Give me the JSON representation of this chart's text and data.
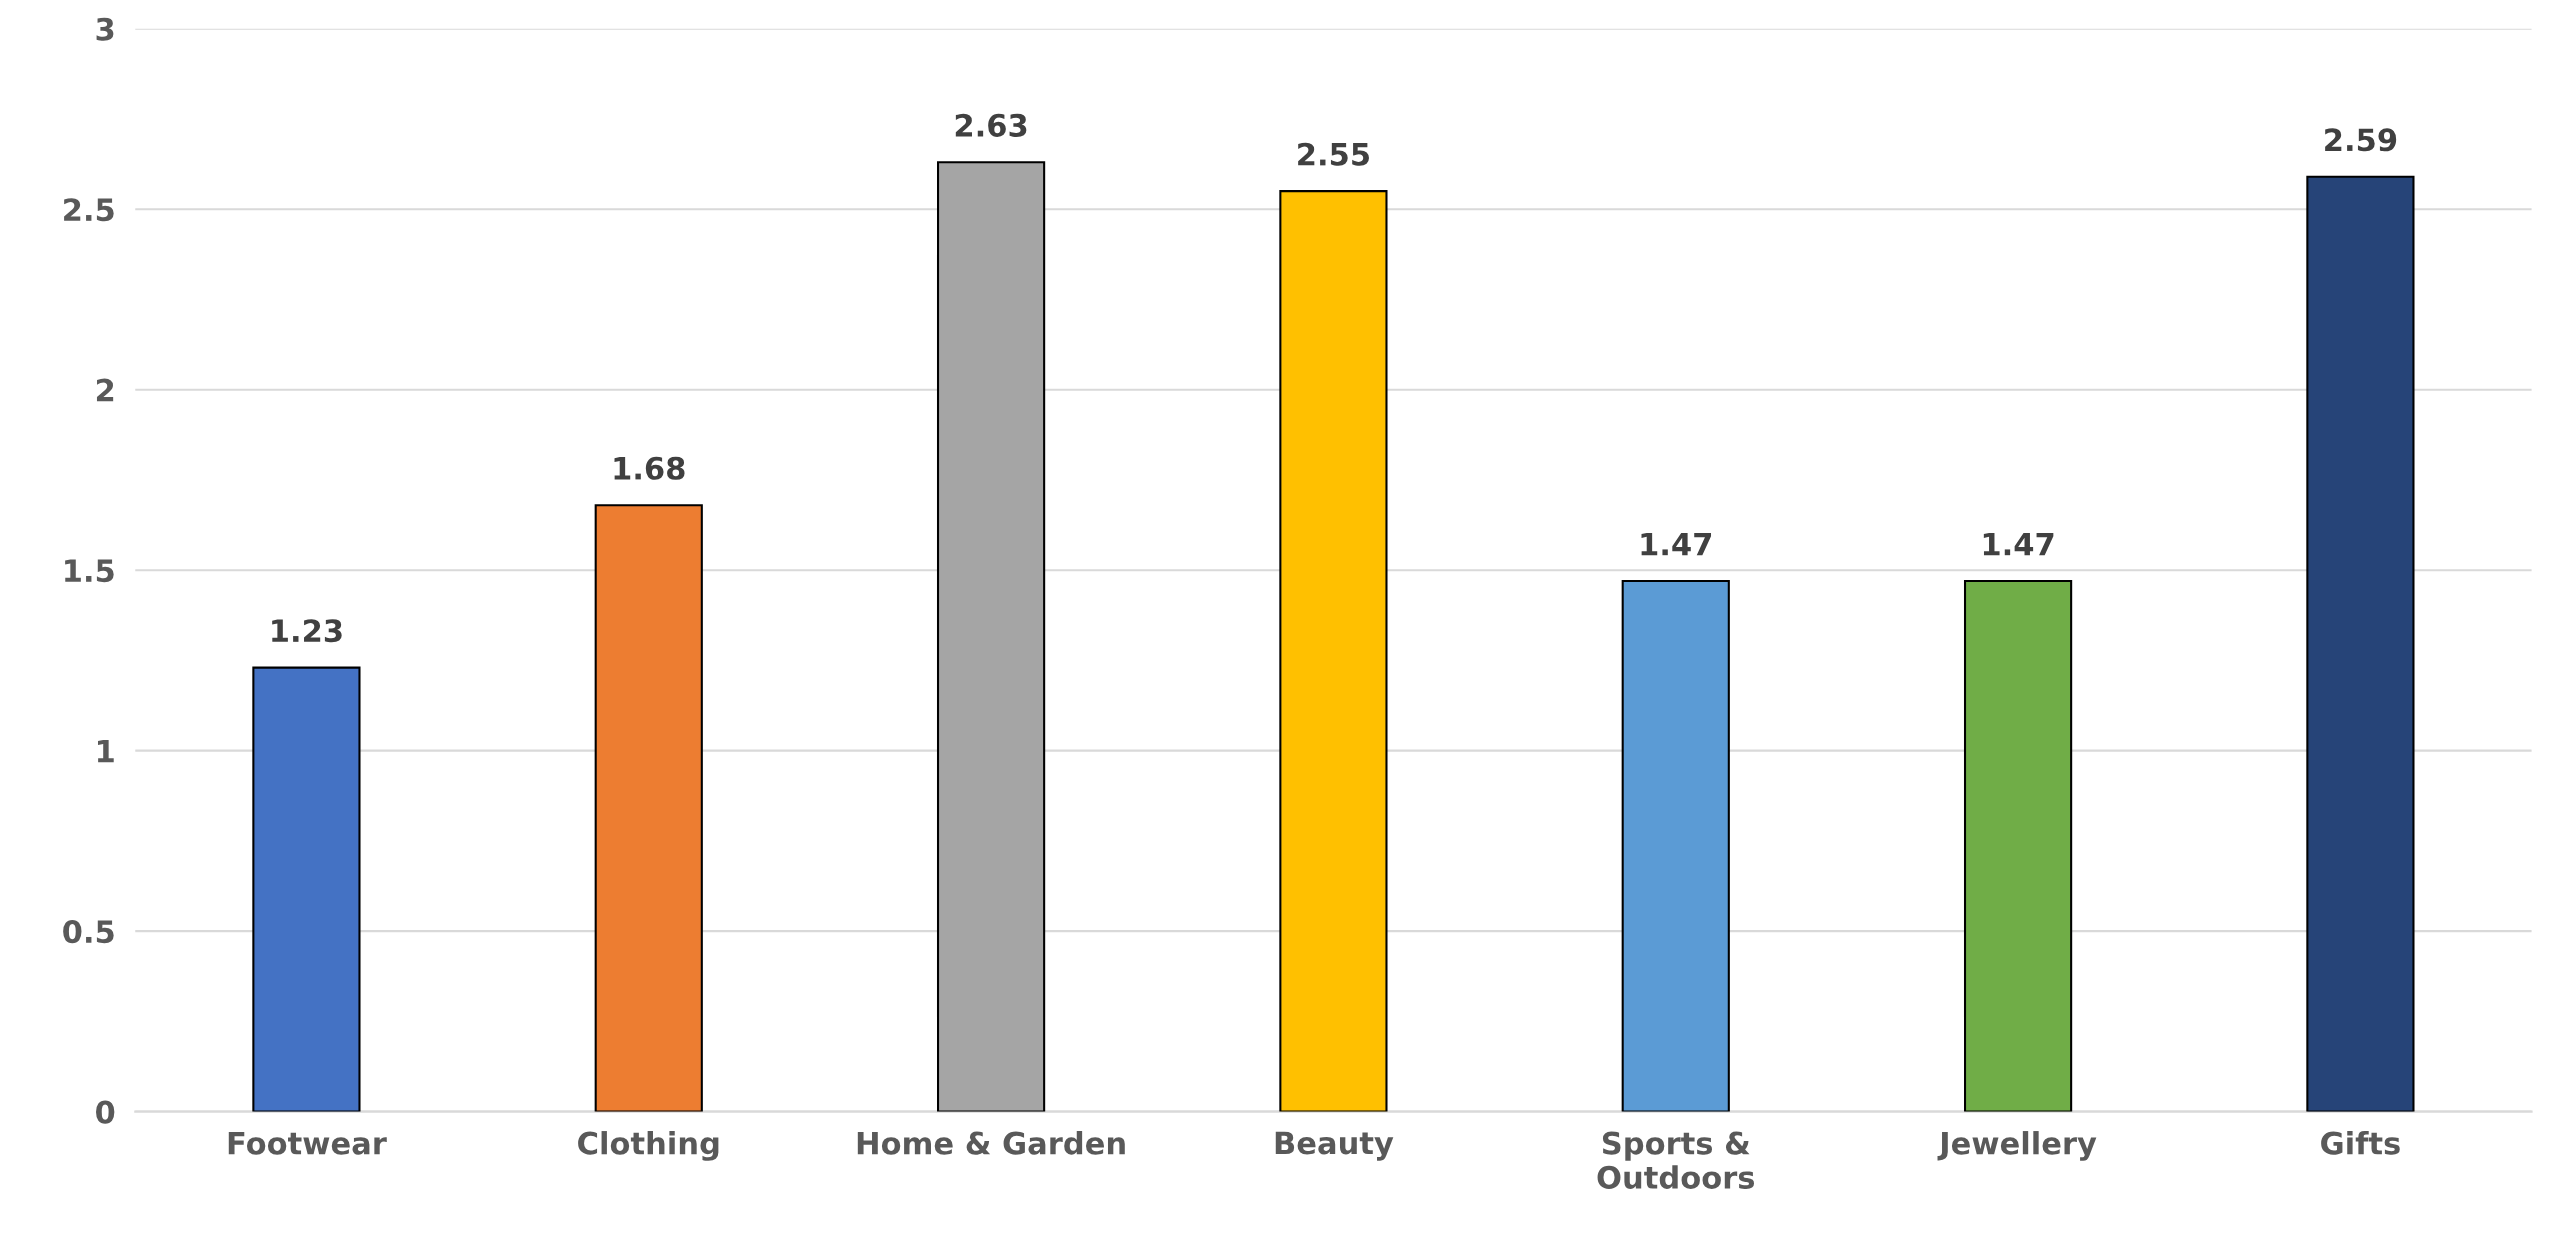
{
  "chart_data": {
    "type": "bar",
    "categories": [
      "Footwear",
      "Clothing",
      "Home & Garden",
      "Beauty",
      "Sports &\nOutdoors",
      "Jewellery",
      "Gifts"
    ],
    "values": [
      1.23,
      1.68,
      2.63,
      2.55,
      1.47,
      1.47,
      2.59
    ],
    "colors": [
      "#4472c4",
      "#ed7d31",
      "#a5a5a5",
      "#ffc000",
      "#5b9bd5",
      "#70ad47",
      "#264478"
    ],
    "ylim": [
      0,
      3
    ],
    "yticks": [
      0,
      0.5,
      1,
      1.5,
      2,
      2.5,
      3
    ],
    "grid": "y",
    "data_labels": true,
    "legend": false
  }
}
